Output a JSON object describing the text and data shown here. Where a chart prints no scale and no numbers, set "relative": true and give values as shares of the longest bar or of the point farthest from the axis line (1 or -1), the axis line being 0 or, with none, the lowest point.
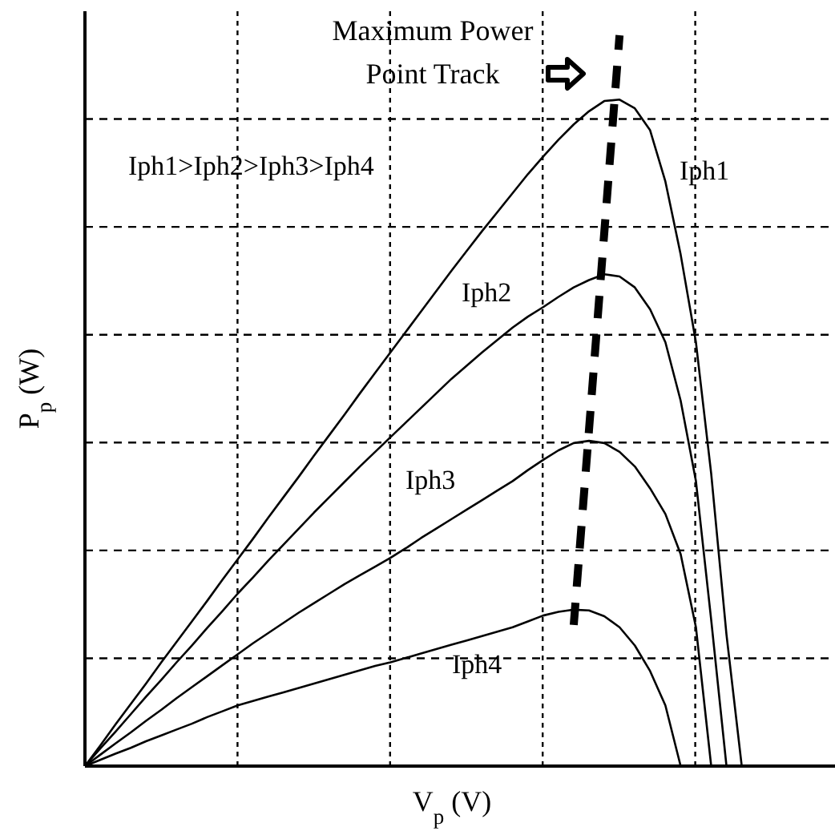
{
  "chart_data": {
    "type": "line",
    "relative": true,
    "xlabel": "V$_{p}$ (V)",
    "ylabel": "P$_{p}$ (W)",
    "grid": true,
    "line_style": "solid",
    "categories": [
      null,
      null,
      null,
      null,
      null,
      null,
      null,
      null,
      null,
      null,
      null,
      null,
      null,
      null,
      null,
      null,
      null,
      null,
      null,
      null,
      null,
      null,
      null,
      null,
      null,
      null,
      null,
      null,
      null,
      null,
      null,
      null,
      null,
      null,
      null,
      null,
      null,
      null,
      null,
      null,
      null,
      null,
      null,
      null,
      null,
      null,
      null,
      null,
      null,
      null
    ],
    "annotations": [
      "Maximum Power Point Track",
      "Iph1>Iph2>Iph3>Iph4"
    ],
    "series": [
      {
        "name": "Iph1",
        "color": "#000000",
        "values": [
          0,
          0.028,
          0.057,
          0.085,
          0.113,
          0.142,
          0.17,
          0.198,
          0.226,
          0.255,
          0.283,
          0.311,
          0.34,
          0.368,
          0.396,
          0.425,
          0.453,
          0.481,
          0.51,
          0.538,
          0.566,
          0.594,
          0.622,
          0.65,
          0.678,
          0.705,
          0.732,
          0.758,
          0.784,
          0.81,
          0.834,
          0.857,
          0.878,
          0.896,
          0.91,
          0.912,
          0.9,
          0.87,
          0.8,
          0.7,
          0.58,
          0.4,
          0.18,
          0,
          null,
          null,
          null,
          null,
          null,
          null
        ]
      },
      {
        "name": "Iph2",
        "color": "#000000",
        "values": [
          0,
          0.024,
          0.047,
          0.071,
          0.095,
          0.118,
          0.142,
          0.165,
          0.189,
          0.212,
          0.236,
          0.258,
          0.281,
          0.303,
          0.325,
          0.347,
          0.368,
          0.389,
          0.41,
          0.43,
          0.45,
          0.47,
          0.49,
          0.51,
          0.53,
          0.548,
          0.566,
          0.583,
          0.6,
          0.615,
          0.628,
          0.642,
          0.655,
          0.665,
          0.673,
          0.67,
          0.655,
          0.625,
          0.58,
          0.5,
          0.39,
          0.2,
          0,
          null,
          null,
          null,
          null,
          null,
          null,
          null
        ]
      },
      {
        "name": "Iph3",
        "color": "#000000",
        "values": [
          0,
          0.0155,
          0.031,
          0.046,
          0.062,
          0.077,
          0.093,
          0.108,
          0.123,
          0.138,
          0.153,
          0.168,
          0.182,
          0.196,
          0.21,
          0.223,
          0.236,
          0.249,
          0.261,
          0.273,
          0.285,
          0.298,
          0.312,
          0.325,
          0.338,
          0.351,
          0.364,
          0.377,
          0.39,
          0.405,
          0.419,
          0.432,
          0.442,
          0.445,
          0.442,
          0.43,
          0.41,
          0.38,
          0.345,
          0.29,
          0.19,
          0,
          null,
          null,
          null,
          null,
          null,
          null,
          null,
          null
        ]
      },
      {
        "name": "Iph4",
        "color": "#000000",
        "values": [
          0,
          0.0085,
          0.017,
          0.025,
          0.034,
          0.042,
          0.05,
          0.058,
          0.067,
          0.075,
          0.083,
          0.089,
          0.095,
          0.101,
          0.107,
          0.113,
          0.119,
          0.125,
          0.131,
          0.137,
          0.142,
          0.148,
          0.154,
          0.16,
          0.166,
          0.172,
          0.178,
          0.184,
          0.19,
          0.198,
          0.206,
          0.211,
          0.214,
          0.213,
          0.205,
          0.19,
          0.165,
          0.13,
          0.083,
          0,
          null,
          null,
          null,
          null,
          null,
          null,
          null,
          null,
          null,
          null
        ]
      },
      {
        "color": "#000000",
        "line_style": "dashed",
        "values": [
          null,
          null,
          null,
          null,
          null,
          null,
          null,
          null,
          null,
          null,
          null,
          null,
          null,
          null,
          null,
          null,
          null,
          null,
          null,
          null,
          null,
          null,
          null,
          null,
          null,
          null,
          null,
          null,
          null,
          null,
          null,
          null,
          0.193,
          0.46,
          0.73,
          1.0,
          null,
          null,
          null,
          null,
          null,
          null,
          null,
          null,
          null,
          null,
          null,
          null,
          null,
          null
        ]
      }
    ]
  }
}
